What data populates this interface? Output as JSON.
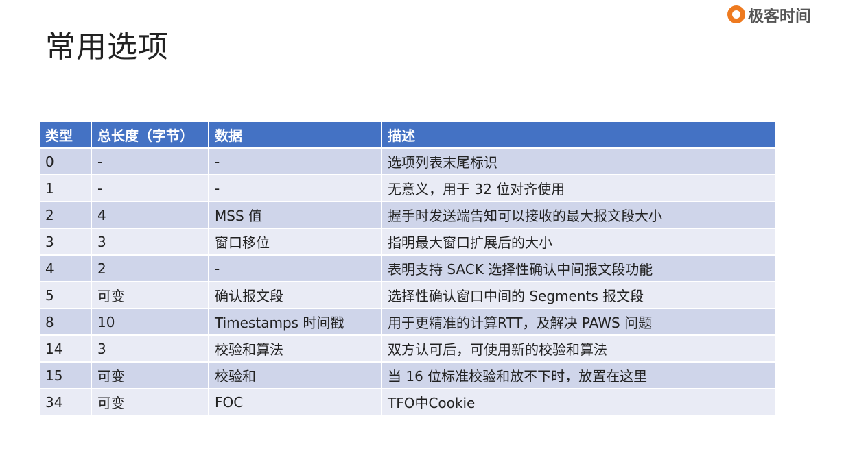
{
  "slide": {
    "title": "常用选项"
  },
  "logo": {
    "text": "极客时间",
    "color": "#ee7a1f"
  },
  "table": {
    "headers": [
      "类型",
      "总长度（字节）",
      "数据",
      "描述"
    ],
    "rows": [
      [
        "0",
        "-",
        "-",
        "选项列表末尾标识"
      ],
      [
        "1",
        "-",
        "-",
        "无意义，用于 32 位对齐使用"
      ],
      [
        "2",
        "4",
        "MSS 值",
        "握手时发送端告知可以接收的最大报文段大小"
      ],
      [
        "3",
        "3",
        "窗口移位",
        "指明最大窗口扩展后的大小"
      ],
      [
        "4",
        "2",
        "-",
        "表明支持 SACK 选择性确认中间报文段功能"
      ],
      [
        "5",
        "可变",
        "确认报文段",
        "选择性确认窗口中间的 Segments 报文段"
      ],
      [
        "8",
        "10",
        "Timestamps 时间戳",
        "用于更精准的计算RTT，及解决 PAWS 问题"
      ],
      [
        "14",
        "3",
        "校验和算法",
        "双方认可后，可使用新的校验和算法"
      ],
      [
        "15",
        "可变",
        "校验和",
        "当 16 位标准校验和放不下时，放置在这里"
      ],
      [
        "34",
        "可变",
        "FOC",
        "TFO中Cookie"
      ]
    ],
    "colors": {
      "header": "#4472c4",
      "row_odd": "#cfd5ea",
      "row_even": "#e9ebf5"
    }
  }
}
